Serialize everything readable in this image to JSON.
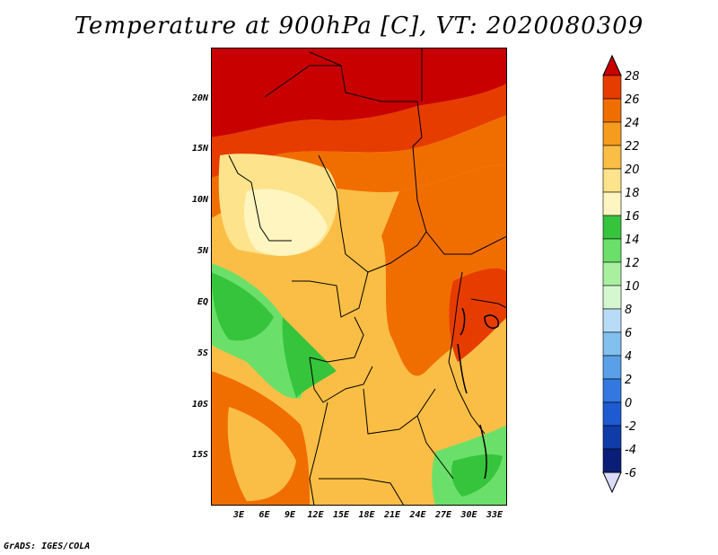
{
  "title": "Temperature at 900hPa [C], VT: 2020080309",
  "footer": "GrADS: IGES/COLA",
  "lat_ticks": [
    "20N",
    "15N",
    "10N",
    "5N",
    "EQ",
    "5S",
    "10S",
    "15S"
  ],
  "lon_ticks": [
    "3E",
    "6E",
    "9E",
    "12E",
    "15E",
    "18E",
    "21E",
    "24E",
    "27E",
    "30E",
    "33E"
  ],
  "colorbar": {
    "labels": [
      "28",
      "26",
      "24",
      "22",
      "20",
      "18",
      "16",
      "14",
      "12",
      "10",
      "8",
      "6",
      "4",
      "2",
      "0",
      "-2",
      "-4",
      "-6"
    ],
    "colors": [
      "#c80000",
      "#e63c00",
      "#f06e00",
      "#f59b1e",
      "#fabe46",
      "#fde38c",
      "#fff5c0",
      "#36c43c",
      "#6ae06a",
      "#a8f0a0",
      "#d4f7d0",
      "#b8dcf8",
      "#82c0f0",
      "#5aa0e8",
      "#3278e0",
      "#1e5ad2",
      "#0f3ca8",
      "#0a1e78",
      "#dcdcfa"
    ]
  }
}
